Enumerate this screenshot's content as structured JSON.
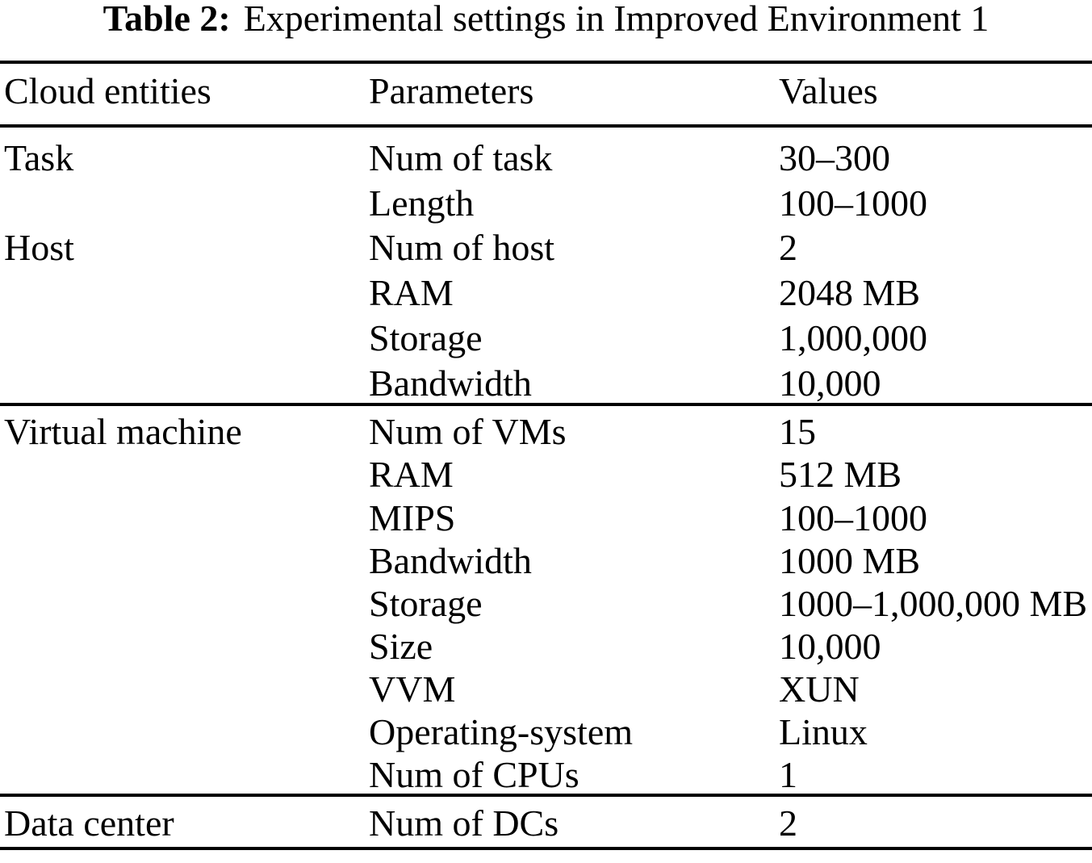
{
  "caption": {
    "label": "Table 2:",
    "text": "Experimental settings in Improved Environment 1"
  },
  "columns": {
    "entity": "Cloud entities",
    "parameter": "Parameters",
    "value": "Values"
  },
  "sections": [
    {
      "rows": [
        {
          "entity": "Task",
          "parameter": "Num of task",
          "value": "30–300"
        },
        {
          "entity": "",
          "parameter": "Length",
          "value": "100–1000"
        },
        {
          "entity": "Host",
          "parameter": "Num of host",
          "value": "2"
        },
        {
          "entity": "",
          "parameter": "RAM",
          "value": "2048 MB"
        },
        {
          "entity": "",
          "parameter": "Storage",
          "value": "1,000,000"
        },
        {
          "entity": "",
          "parameter": "Bandwidth",
          "value": "10,000"
        }
      ]
    },
    {
      "rows": [
        {
          "entity": "Virtual machine",
          "parameter": "Num of VMs",
          "value": "15"
        },
        {
          "entity": "",
          "parameter": "RAM",
          "value": "512 MB"
        },
        {
          "entity": "",
          "parameter": "MIPS",
          "value": "100–1000"
        },
        {
          "entity": "",
          "parameter": "Bandwidth",
          "value": "1000 MB"
        },
        {
          "entity": "",
          "parameter": "Storage",
          "value": "1000–1,000,000 MB"
        },
        {
          "entity": "",
          "parameter": "Size",
          "value": "10,000"
        },
        {
          "entity": "",
          "parameter": "VVM",
          "value": "XUN"
        },
        {
          "entity": "",
          "parameter": "Operating-system",
          "value": "Linux"
        },
        {
          "entity": "",
          "parameter": "Num of CPUs",
          "value": "1"
        }
      ]
    },
    {
      "rows": [
        {
          "entity": "Data center",
          "parameter": "Num of DCs",
          "value": "2"
        }
      ]
    }
  ]
}
